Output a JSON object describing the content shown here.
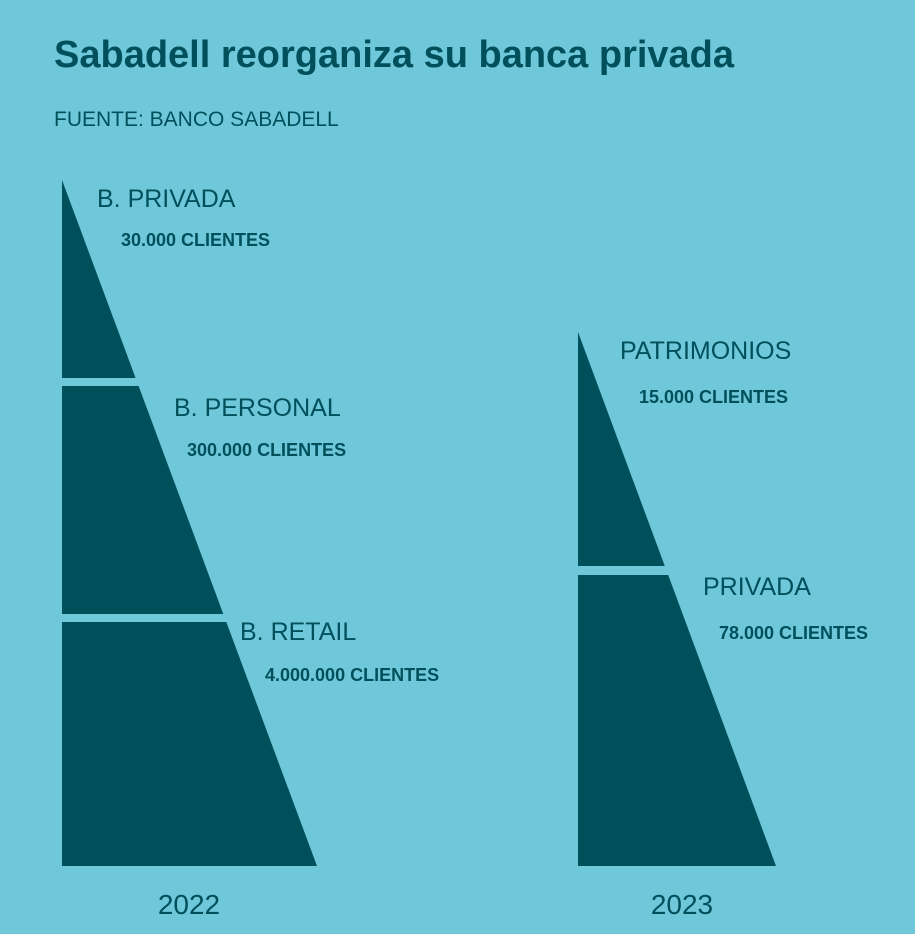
{
  "title": "Sabadell reorganiza su banca privada",
  "source": "FUENTE: BANCO SABADELL",
  "pyramids": [
    {
      "year": "2022",
      "segments": [
        {
          "label": "B. PRIVADA",
          "clients": "30.000 CLIENTES"
        },
        {
          "label": "B. PERSONAL",
          "clients": "300.000 CLIENTES"
        },
        {
          "label": "B. RETAIL",
          "clients": "4.000.000 CLIENTES"
        }
      ]
    },
    {
      "year": "2023",
      "segments": [
        {
          "label": "PATRIMONIOS",
          "clients": "15.000 CLIENTES"
        },
        {
          "label": "PRIVADA",
          "clients": "78.000 CLIENTES"
        }
      ]
    }
  ]
}
